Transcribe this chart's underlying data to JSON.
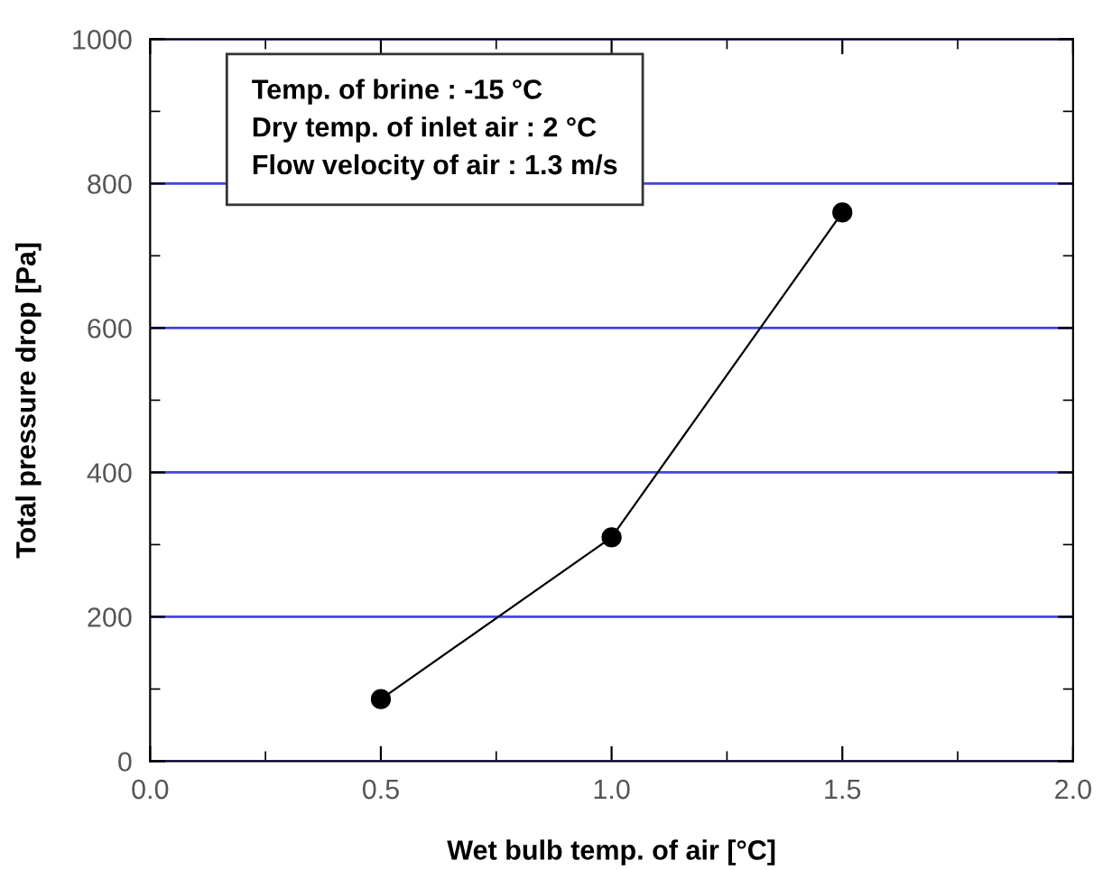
{
  "chart_data": {
    "type": "line",
    "xlabel": "Wet bulb temp. of air [°C]",
    "ylabel": "Total pressure drop [Pa]",
    "x": [
      0.5,
      1.0,
      1.5
    ],
    "series": [
      {
        "color": "#000000",
        "values": [
          86,
          310,
          760
        ]
      }
    ],
    "marker": "circle",
    "line_style": "solid",
    "grid": "y",
    "xlim": [
      0.0,
      2.0
    ],
    "xticks": [
      {
        "value": 0.0,
        "label": "0.0"
      },
      0.5,
      {
        "value": 1.0,
        "label": "1.0"
      },
      1.5,
      {
        "value": 2.0,
        "label": "2.0"
      }
    ],
    "ylim": [
      0,
      1000
    ],
    "yticks": [
      0,
      200,
      400,
      600,
      800,
      1000
    ],
    "annotations": [
      "Temp. of brine : -15 °C",
      "Dry temp. of inlet air : 2 °C",
      "Flow velocity of air : 1.3 m/s"
    ]
  }
}
